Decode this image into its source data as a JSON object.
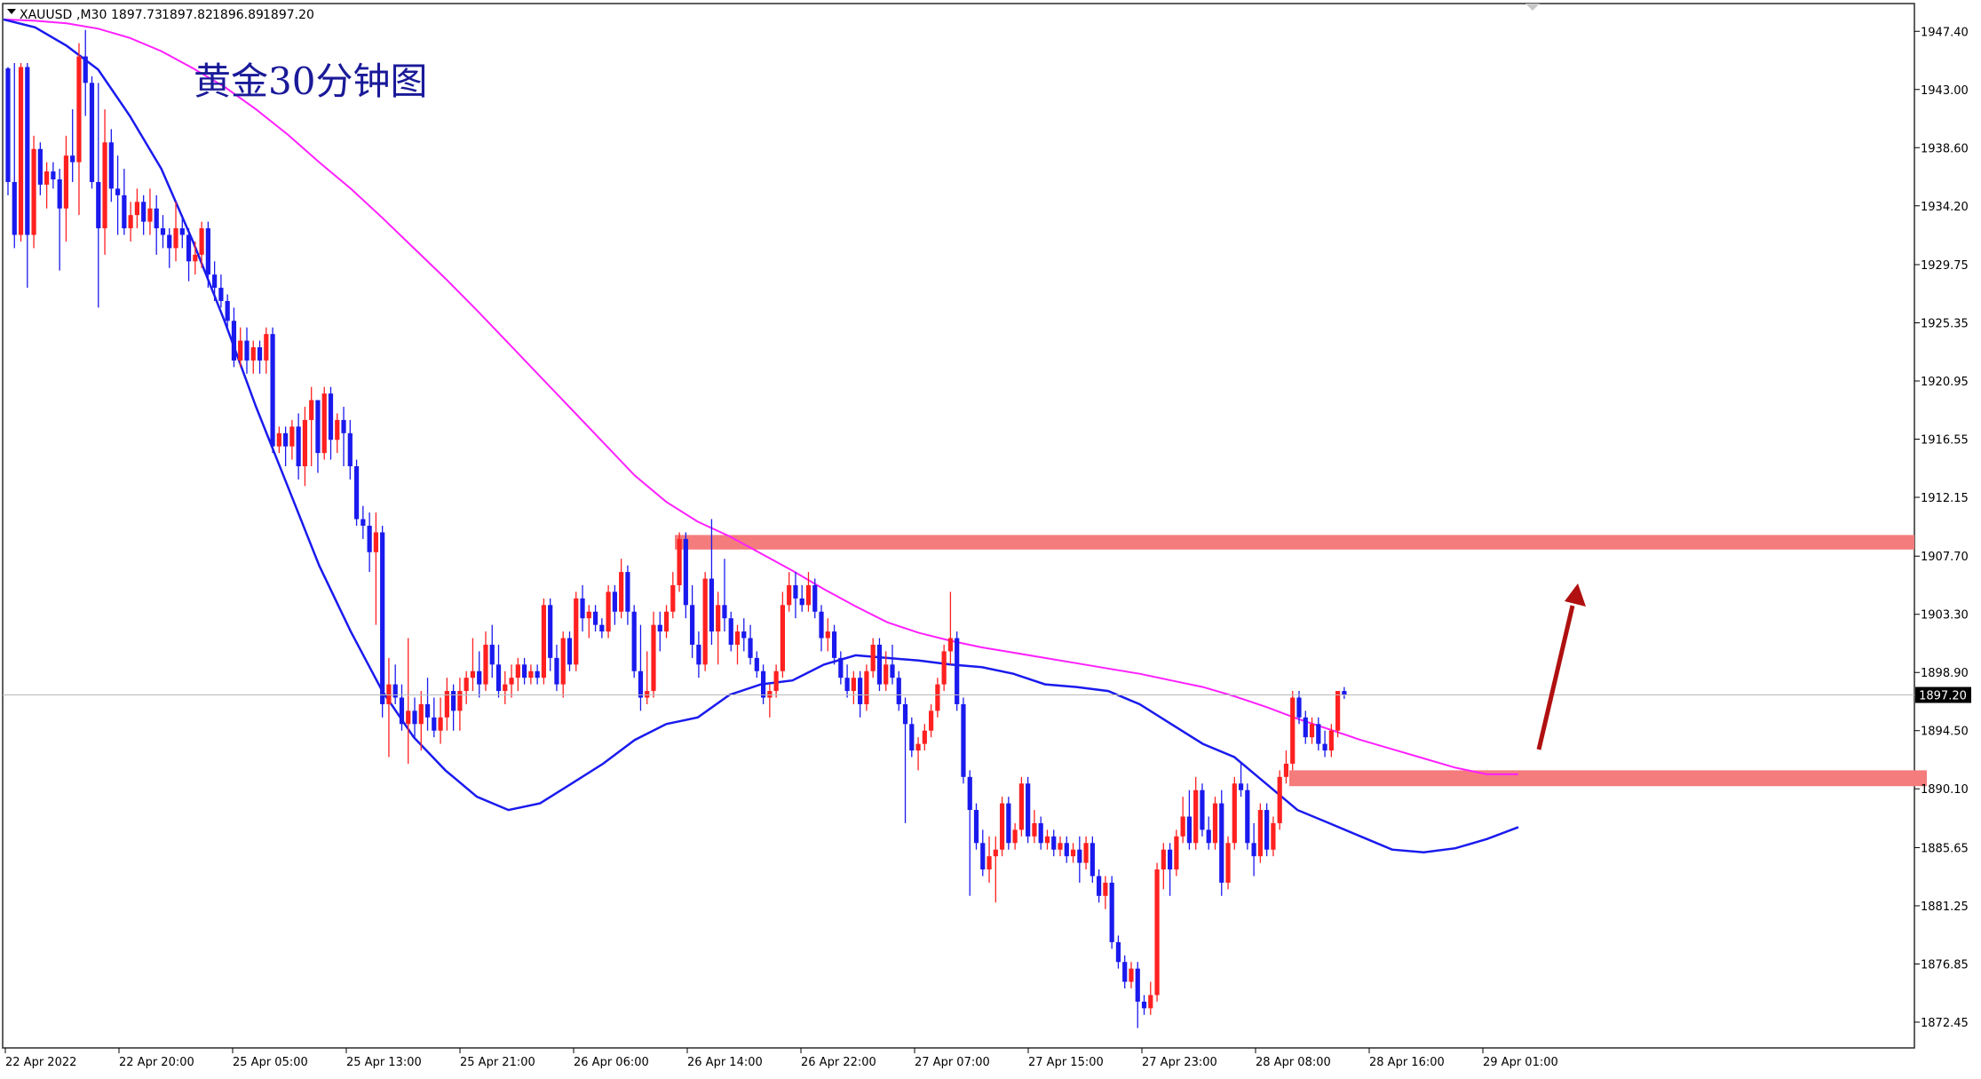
{
  "header": {
    "symbol": "XAUUSD",
    "timeframe": "M30",
    "open": "1897.73",
    "high": "1897.82",
    "low": "1896.89",
    "close": "1897.20"
  },
  "chart_title": "黄金30分钟图",
  "colors": {
    "bull": "#ff2020",
    "bear": "#1a1aee",
    "ma_fast": "#1a1aee",
    "ma_slow": "#ff20ff",
    "zone": "#f47c7c",
    "arrow": "#b01010",
    "price_marker_bg": "#000000",
    "price_marker_text": "#ffffff"
  },
  "chart_data": {
    "type": "candlestick",
    "y_ticks": [
      "1947.40",
      "1943.00",
      "1938.60",
      "1934.20",
      "1929.75",
      "1925.35",
      "1920.95",
      "1916.55",
      "1912.15",
      "1907.70",
      "1903.30",
      "1898.90",
      "1894.50",
      "1890.10",
      "1885.65",
      "1881.25",
      "1876.85",
      "1872.45"
    ],
    "ylim": [
      1870.5,
      1949.5
    ],
    "x_ticks": [
      "22 Apr 2022",
      "22 Apr 20:00",
      "25 Apr 05:00",
      "25 Apr 13:00",
      "25 Apr 21:00",
      "26 Apr 06:00",
      "26 Apr 14:00",
      "26 Apr 22:00",
      "27 Apr 07:00",
      "27 Apr 15:00",
      "27 Apr 23:00",
      "28 Apr 08:00",
      "28 Apr 16:00",
      "29 Apr 01:00"
    ],
    "current_price": "1897.20",
    "resistance_zone": [
      1908.2,
      1909.3
    ],
    "support_zone": [
      1890.3,
      1891.5
    ],
    "grid": false,
    "candles": [
      [
        1944.6,
        1944.7,
        1935.0,
        1936.0
      ],
      [
        1936.0,
        1945.0,
        1931.0,
        1932.0
      ],
      [
        1932.0,
        1945.0,
        1931.5,
        1944.7
      ],
      [
        1944.7,
        1945.0,
        1928.0,
        1932.0
      ],
      [
        1932.0,
        1939.5,
        1931.0,
        1938.5
      ],
      [
        1938.5,
        1939.0,
        1935.0,
        1935.8
      ],
      [
        1935.8,
        1937.5,
        1934.0,
        1936.8
      ],
      [
        1936.8,
        1937.5,
        1935.5,
        1936.2
      ],
      [
        1936.2,
        1937.0,
        1929.3,
        1934.0
      ],
      [
        1934.0,
        1939.5,
        1931.5,
        1938.0
      ],
      [
        1938.0,
        1941.5,
        1936.0,
        1937.5
      ],
      [
        1937.5,
        1946.5,
        1933.5,
        1945.5
      ],
      [
        1945.5,
        1947.5,
        1941.0,
        1943.5
      ],
      [
        1943.5,
        1944.0,
        1935.5,
        1936.0
      ],
      [
        1936.0,
        1943.5,
        1926.5,
        1932.5
      ],
      [
        1932.5,
        1941.5,
        1930.5,
        1939.0
      ],
      [
        1939.0,
        1940.0,
        1934.5,
        1935.5
      ],
      [
        1935.5,
        1938.0,
        1932.0,
        1935.0
      ],
      [
        1935.0,
        1937.0,
        1932.0,
        1932.5
      ],
      [
        1932.5,
        1934.5,
        1931.5,
        1933.5
      ],
      [
        1933.5,
        1935.5,
        1932.5,
        1934.5
      ],
      [
        1934.5,
        1935.0,
        1932.0,
        1933.0
      ],
      [
        1933.0,
        1935.5,
        1932.0,
        1934.0
      ],
      [
        1934.0,
        1935.0,
        1930.5,
        1932.5
      ],
      [
        1932.5,
        1933.5,
        1931.0,
        1932.0
      ],
      [
        1932.0,
        1932.5,
        1929.5,
        1931.0
      ],
      [
        1931.0,
        1934.5,
        1930.0,
        1932.5
      ],
      [
        1932.5,
        1933.5,
        1931.0,
        1932.0
      ],
      [
        1932.0,
        1932.5,
        1928.5,
        1930.0
      ],
      [
        1930.0,
        1931.5,
        1929.0,
        1930.5
      ],
      [
        1930.5,
        1933.0,
        1929.5,
        1932.5
      ],
      [
        1932.5,
        1933.0,
        1928.0,
        1929.0
      ],
      [
        1929.0,
        1930.0,
        1927.0,
        1928.0
      ],
      [
        1928.0,
        1929.0,
        1926.5,
        1927.0
      ],
      [
        1927.0,
        1927.5,
        1925.0,
        1925.5
      ],
      [
        1925.5,
        1926.5,
        1922.0,
        1922.5
      ],
      [
        1922.5,
        1925.0,
        1922.0,
        1924.0
      ],
      [
        1924.0,
        1925.0,
        1921.5,
        1922.5
      ],
      [
        1922.5,
        1924.0,
        1921.5,
        1923.5
      ],
      [
        1923.5,
        1924.0,
        1921.5,
        1922.5
      ],
      [
        1922.5,
        1925.0,
        1921.5,
        1924.5
      ],
      [
        1924.5,
        1925.0,
        1915.5,
        1916.0
      ],
      [
        1916.0,
        1917.5,
        1915.5,
        1917.0
      ],
      [
        1917.0,
        1917.5,
        1914.5,
        1916.0
      ],
      [
        1916.0,
        1918.0,
        1915.0,
        1917.5
      ],
      [
        1917.5,
        1918.5,
        1913.5,
        1914.5
      ],
      [
        1914.5,
        1919.0,
        1913.0,
        1918.0
      ],
      [
        1918.0,
        1920.5,
        1914.5,
        1919.5
      ],
      [
        1919.5,
        1919.5,
        1914.0,
        1915.5
      ],
      [
        1915.5,
        1920.5,
        1915.0,
        1920.0
      ],
      [
        1920.0,
        1920.5,
        1915.0,
        1916.5
      ],
      [
        1916.5,
        1918.5,
        1915.5,
        1918.0
      ],
      [
        1918.0,
        1919.0,
        1914.5,
        1917.0
      ],
      [
        1917.0,
        1918.0,
        1913.5,
        1914.5
      ],
      [
        1914.5,
        1915.0,
        1910.0,
        1910.5
      ],
      [
        1910.5,
        1911.5,
        1909.0,
        1910.0
      ],
      [
        1910.0,
        1911.0,
        1906.5,
        1908.0
      ],
      [
        1908.0,
        1911.0,
        1902.5,
        1909.5
      ],
      [
        1909.5,
        1910.0,
        1895.5,
        1896.5
      ],
      [
        1896.5,
        1900.0,
        1892.5,
        1898.0
      ],
      [
        1898.0,
        1899.5,
        1896.5,
        1897.0
      ],
      [
        1897.0,
        1898.0,
        1894.5,
        1895.0
      ],
      [
        1895.0,
        1901.5,
        1892.0,
        1896.0
      ],
      [
        1896.0,
        1897.0,
        1894.0,
        1895.0
      ],
      [
        1895.0,
        1897.5,
        1893.0,
        1896.5
      ],
      [
        1896.5,
        1898.5,
        1894.5,
        1895.5
      ],
      [
        1895.5,
        1897.0,
        1894.0,
        1894.5
      ],
      [
        1894.5,
        1897.0,
        1893.5,
        1895.5
      ],
      [
        1895.5,
        1898.5,
        1894.5,
        1897.5
      ],
      [
        1897.5,
        1898.0,
        1894.5,
        1896.0
      ],
      [
        1896.0,
        1898.5,
        1894.5,
        1897.5
      ],
      [
        1897.5,
        1899.0,
        1896.5,
        1898.5
      ],
      [
        1898.5,
        1901.5,
        1897.5,
        1899.0
      ],
      [
        1899.0,
        1900.5,
        1897.0,
        1898.0
      ],
      [
        1898.0,
        1902.0,
        1897.5,
        1901.0
      ],
      [
        1901.0,
        1902.5,
        1898.5,
        1899.5
      ],
      [
        1899.5,
        1901.0,
        1897.0,
        1897.5
      ],
      [
        1897.5,
        1899.0,
        1896.5,
        1898.0
      ],
      [
        1898.0,
        1899.5,
        1897.0,
        1898.5
      ],
      [
        1898.5,
        1900.0,
        1897.5,
        1899.5
      ],
      [
        1899.5,
        1900.0,
        1898.0,
        1898.5
      ],
      [
        1898.5,
        1899.5,
        1898.0,
        1899.0
      ],
      [
        1899.0,
        1899.5,
        1898.0,
        1898.5
      ],
      [
        1898.5,
        1904.5,
        1898.0,
        1904.0
      ],
      [
        1904.0,
        1904.5,
        1899.0,
        1900.0
      ],
      [
        1900.0,
        1901.0,
        1897.5,
        1898.0
      ],
      [
        1898.0,
        1902.0,
        1897.0,
        1901.5
      ],
      [
        1901.5,
        1902.0,
        1899.0,
        1899.5
      ],
      [
        1899.5,
        1905.0,
        1899.0,
        1904.5
      ],
      [
        1904.5,
        1905.5,
        1902.0,
        1903.0
      ],
      [
        1903.0,
        1904.0,
        1901.5,
        1903.5
      ],
      [
        1903.5,
        1904.0,
        1902.0,
        1902.5
      ],
      [
        1902.5,
        1903.0,
        1901.5,
        1902.0
      ],
      [
        1902.0,
        1905.5,
        1901.5,
        1905.0
      ],
      [
        1905.0,
        1905.5,
        1902.5,
        1903.5
      ],
      [
        1903.5,
        1907.5,
        1903.0,
        1906.5
      ],
      [
        1906.5,
        1907.0,
        1902.5,
        1903.5
      ],
      [
        1903.5,
        1904.0,
        1898.5,
        1899.0
      ],
      [
        1899.0,
        1902.5,
        1896.0,
        1897.0
      ],
      [
        1897.0,
        1900.5,
        1896.5,
        1897.5
      ],
      [
        1897.5,
        1903.5,
        1897.0,
        1902.5
      ],
      [
        1902.5,
        1903.5,
        1900.5,
        1902.0
      ],
      [
        1902.0,
        1904.0,
        1901.5,
        1903.5
      ],
      [
        1903.5,
        1906.5,
        1903.0,
        1905.5
      ],
      [
        1905.5,
        1909.5,
        1905.0,
        1909.0
      ],
      [
        1909.0,
        1909.5,
        1903.0,
        1904.0
      ],
      [
        1904.0,
        1905.5,
        1900.0,
        1901.0
      ],
      [
        1901.0,
        1902.0,
        1898.5,
        1899.5
      ],
      [
        1899.5,
        1906.5,
        1899.0,
        1906.0
      ],
      [
        1906.0,
        1910.5,
        1901.0,
        1902.0
      ],
      [
        1902.0,
        1905.0,
        1899.5,
        1904.0
      ],
      [
        1904.0,
        1907.5,
        1902.0,
        1903.0
      ],
      [
        1903.0,
        1903.5,
        1900.5,
        1901.0
      ],
      [
        1901.0,
        1902.5,
        1899.5,
        1902.0
      ],
      [
        1902.0,
        1903.0,
        1900.5,
        1901.5
      ],
      [
        1901.5,
        1902.5,
        1899.5,
        1900.0
      ],
      [
        1900.0,
        1900.5,
        1898.5,
        1899.0
      ],
      [
        1899.0,
        1899.5,
        1896.5,
        1897.0
      ],
      [
        1897.0,
        1898.0,
        1895.5,
        1897.5
      ],
      [
        1897.5,
        1899.5,
        1897.0,
        1899.0
      ],
      [
        1899.0,
        1905.0,
        1898.5,
        1904.0
      ],
      [
        1904.0,
        1906.5,
        1903.5,
        1905.5
      ],
      [
        1905.5,
        1906.5,
        1903.0,
        1904.5
      ],
      [
        1904.5,
        1905.5,
        1903.5,
        1904.0
      ],
      [
        1904.0,
        1906.5,
        1903.5,
        1905.5
      ],
      [
        1905.5,
        1906.0,
        1903.0,
        1903.5
      ],
      [
        1903.5,
        1904.0,
        1900.5,
        1901.5
      ],
      [
        1901.5,
        1903.0,
        1900.5,
        1902.0
      ],
      [
        1902.0,
        1902.5,
        1899.5,
        1900.0
      ],
      [
        1900.0,
        1900.5,
        1898.0,
        1898.5
      ],
      [
        1898.5,
        1899.5,
        1897.0,
        1897.5
      ],
      [
        1897.5,
        1899.0,
        1896.5,
        1898.5
      ],
      [
        1898.5,
        1899.0,
        1895.5,
        1896.5
      ],
      [
        1896.5,
        1899.5,
        1896.0,
        1899.0
      ],
      [
        1899.0,
        1901.5,
        1898.5,
        1901.0
      ],
      [
        1901.0,
        1901.5,
        1897.5,
        1898.0
      ],
      [
        1898.0,
        1900.5,
        1897.5,
        1899.5
      ],
      [
        1899.5,
        1901.0,
        1898.0,
        1898.5
      ],
      [
        1898.5,
        1899.0,
        1896.0,
        1896.5
      ],
      [
        1896.5,
        1897.0,
        1887.5,
        1895.0
      ],
      [
        1895.0,
        1895.5,
        1892.5,
        1893.0
      ],
      [
        1893.0,
        1894.0,
        1891.5,
        1893.5
      ],
      [
        1893.5,
        1895.0,
        1893.0,
        1894.5
      ],
      [
        1894.5,
        1896.5,
        1894.0,
        1896.0
      ],
      [
        1896.0,
        1898.5,
        1895.5,
        1898.0
      ],
      [
        1898.0,
        1901.0,
        1897.5,
        1900.5
      ],
      [
        1900.5,
        1905.0,
        1899.5,
        1901.5
      ],
      [
        1901.5,
        1902.0,
        1896.0,
        1896.5
      ],
      [
        1896.5,
        1897.0,
        1890.5,
        1891.0
      ],
      [
        1891.0,
        1891.5,
        1882.0,
        1888.5
      ],
      [
        1888.5,
        1889.0,
        1885.5,
        1886.0
      ],
      [
        1886.0,
        1887.0,
        1883.5,
        1884.0
      ],
      [
        1884.0,
        1886.5,
        1883.0,
        1885.0
      ],
      [
        1885.0,
        1886.5,
        1881.5,
        1885.5
      ],
      [
        1885.5,
        1889.5,
        1885.0,
        1889.0
      ],
      [
        1889.0,
        1889.5,
        1885.5,
        1886.0
      ],
      [
        1886.0,
        1887.5,
        1885.5,
        1887.0
      ],
      [
        1887.0,
        1891.0,
        1886.5,
        1890.5
      ],
      [
        1890.5,
        1891.0,
        1886.0,
        1886.5
      ],
      [
        1886.5,
        1888.5,
        1886.0,
        1887.5
      ],
      [
        1887.5,
        1888.0,
        1885.5,
        1886.0
      ],
      [
        1886.0,
        1887.0,
        1885.5,
        1886.5
      ],
      [
        1886.5,
        1887.0,
        1885.0,
        1885.5
      ],
      [
        1885.5,
        1886.5,
        1885.0,
        1886.0
      ],
      [
        1886.0,
        1886.5,
        1884.5,
        1885.0
      ],
      [
        1885.0,
        1886.0,
        1884.5,
        1885.5
      ],
      [
        1885.5,
        1886.5,
        1883.0,
        1884.5
      ],
      [
        1884.5,
        1886.5,
        1884.0,
        1886.0
      ],
      [
        1886.0,
        1886.5,
        1883.0,
        1883.5
      ],
      [
        1883.5,
        1884.0,
        1881.5,
        1882.0
      ],
      [
        1882.0,
        1883.5,
        1881.0,
        1883.0
      ],
      [
        1883.0,
        1883.5,
        1878.0,
        1878.5
      ],
      [
        1878.5,
        1879.0,
        1876.5,
        1877.0
      ],
      [
        1877.0,
        1877.5,
        1875.0,
        1875.5
      ],
      [
        1875.5,
        1877.0,
        1875.0,
        1876.5
      ],
      [
        1876.5,
        1877.0,
        1872.0,
        1874.0
      ],
      [
        1874.0,
        1874.5,
        1873.0,
        1873.5
      ],
      [
        1873.5,
        1875.5,
        1873.0,
        1874.5
      ],
      [
        1874.5,
        1884.5,
        1874.0,
        1884.0
      ],
      [
        1884.0,
        1886.0,
        1882.5,
        1885.5
      ],
      [
        1885.5,
        1886.0,
        1882.0,
        1884.0
      ],
      [
        1884.0,
        1887.0,
        1883.5,
        1886.5
      ],
      [
        1886.5,
        1889.5,
        1886.0,
        1888.0
      ],
      [
        1888.0,
        1890.0,
        1885.5,
        1886.0
      ],
      [
        1886.0,
        1891.0,
        1885.5,
        1890.0
      ],
      [
        1890.0,
        1890.5,
        1886.5,
        1887.0
      ],
      [
        1887.0,
        1888.0,
        1885.5,
        1886.0
      ],
      [
        1886.0,
        1889.5,
        1885.5,
        1889.0
      ],
      [
        1889.0,
        1890.0,
        1882.0,
        1883.0
      ],
      [
        1883.0,
        1886.5,
        1882.5,
        1886.0
      ],
      [
        1886.0,
        1891.0,
        1885.5,
        1890.5
      ],
      [
        1890.5,
        1892.0,
        1889.5,
        1890.0
      ],
      [
        1890.0,
        1890.5,
        1885.5,
        1886.0
      ],
      [
        1886.0,
        1887.5,
        1883.5,
        1885.0
      ],
      [
        1885.0,
        1889.0,
        1884.5,
        1888.5
      ],
      [
        1888.5,
        1889.0,
        1885.0,
        1885.5
      ],
      [
        1885.5,
        1888.0,
        1885.0,
        1887.5
      ],
      [
        1887.5,
        1891.5,
        1887.0,
        1891.0
      ],
      [
        1891.0,
        1893.0,
        1890.5,
        1892.0
      ],
      [
        1892.0,
        1897.5,
        1891.5,
        1897.0
      ],
      [
        1897.0,
        1897.5,
        1895.0,
        1895.5
      ],
      [
        1895.5,
        1896.0,
        1893.5,
        1894.0
      ],
      [
        1894.0,
        1895.5,
        1893.5,
        1895.0
      ],
      [
        1895.0,
        1895.5,
        1893.0,
        1893.5
      ],
      [
        1893.5,
        1894.5,
        1892.5,
        1893.0
      ],
      [
        1893.0,
        1895.0,
        1892.5,
        1894.5
      ],
      [
        1894.5,
        1897.5,
        1894.0,
        1897.5
      ],
      [
        1897.5,
        1897.8,
        1896.9,
        1897.2
      ]
    ],
    "ma_fast": [
      1948.3,
      1947.7,
      1946.3,
      1944.5,
      1941.0,
      1937.0,
      1931.5,
      1925.5,
      1919.0,
      1913.0,
      1907.0,
      1902.0,
      1897.5,
      1894.0,
      1891.5,
      1889.5,
      1888.5,
      1889.0,
      1890.5,
      1892.0,
      1893.8,
      1895.0,
      1895.5,
      1897.2,
      1898.0,
      1898.3,
      1899.5,
      1900.2,
      1900.0,
      1899.8,
      1899.5,
      1899.3,
      1898.8,
      1898.0,
      1897.8,
      1897.5,
      1896.5,
      1895.0,
      1893.5,
      1892.5,
      1890.5,
      1888.5,
      1887.5,
      1886.5,
      1885.5,
      1885.3,
      1885.6,
      1886.3,
      1887.2
    ],
    "ma_slow": [
      1948.3,
      1948.2,
      1948.0,
      1947.6,
      1946.9,
      1945.9,
      1944.6,
      1943.2,
      1941.5,
      1939.6,
      1937.5,
      1935.5,
      1933.3,
      1931.0,
      1928.7,
      1926.3,
      1923.8,
      1921.3,
      1918.8,
      1916.3,
      1913.8,
      1911.8,
      1910.3,
      1909.2,
      1907.9,
      1906.6,
      1905.2,
      1903.9,
      1902.7,
      1901.9,
      1901.3,
      1900.8,
      1900.4,
      1900.0,
      1899.6,
      1899.2,
      1898.8,
      1898.3,
      1897.8,
      1897.1,
      1896.3,
      1895.4,
      1894.6,
      1893.8,
      1893.1,
      1892.4,
      1891.7,
      1891.2,
      1891.2
    ],
    "annotations": [
      "resistance-zone",
      "support-zone",
      "up-arrow"
    ]
  }
}
